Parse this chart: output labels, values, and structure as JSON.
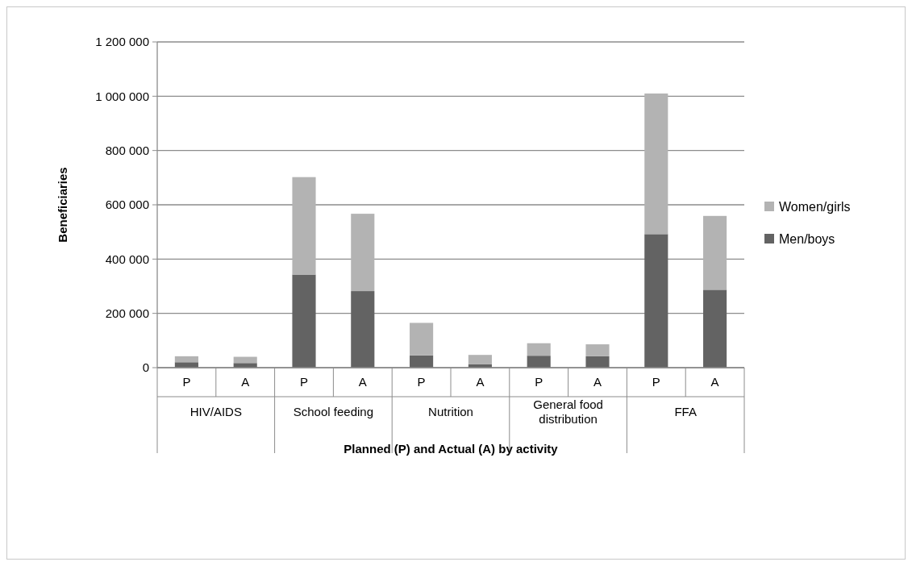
{
  "chart_data": {
    "type": "bar",
    "stacked": true,
    "categories": [
      "P",
      "A",
      "P",
      "A",
      "P",
      "A",
      "P",
      "A",
      "P",
      "A"
    ],
    "series": [
      {
        "name": "Men/boys",
        "color": "#636363",
        "values": [
          20000,
          17000,
          343000,
          282000,
          45000,
          12000,
          44000,
          42000,
          492000,
          287000
        ]
      },
      {
        "name": "Women/girls",
        "color": "#b3b3b3",
        "values": [
          22000,
          23000,
          359000,
          285000,
          120000,
          35000,
          46000,
          44000,
          518000,
          272000
        ]
      }
    ],
    "ylim": [
      0,
      1200000
    ],
    "yticks": [
      {
        "value": 0,
        "label": "0"
      },
      {
        "value": 200000,
        "label": "200 000"
      },
      {
        "value": 400000,
        "label": "400 000"
      },
      {
        "value": 600000,
        "label": "600 000"
      },
      {
        "value": 800000,
        "label": "800 000"
      },
      {
        "value": 1000000,
        "label": "1 000 000"
      },
      {
        "value": 1200000,
        "label": "1 200 000"
      }
    ],
    "ylabel": "Beneficiaries",
    "xlabel": "Planned (P) and Actual (A) by activity",
    "annotations": [
      "HIV/AIDS",
      "School feeding",
      "Nutrition",
      "General food distribution",
      "FFA"
    ],
    "grid": "y",
    "legend": "right"
  }
}
